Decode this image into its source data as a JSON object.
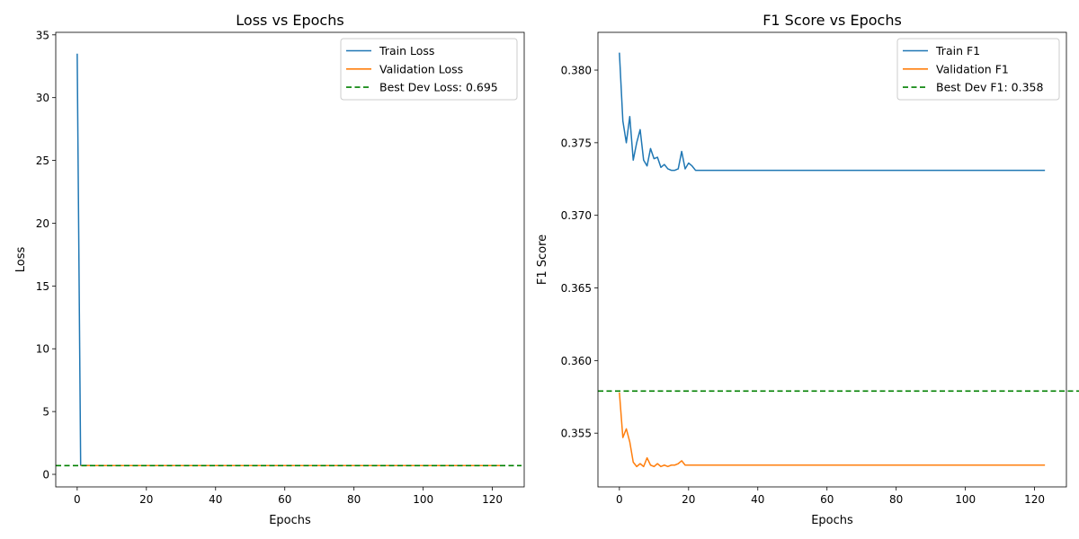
{
  "chart_data": [
    {
      "type": "line",
      "title": "Loss vs Epochs",
      "xlabel": "Epochs",
      "ylabel": "Loss",
      "xlim": [
        -6.2,
        129.2
      ],
      "ylim": [
        -1.0,
        35.2
      ],
      "xticks": [
        0,
        20,
        40,
        60,
        80,
        100,
        120
      ],
      "yticks": [
        0,
        5,
        10,
        15,
        20,
        25,
        30,
        35
      ],
      "grid": false,
      "legend_position": "top-right",
      "series": [
        {
          "name": "Train Loss",
          "color": "#1f77b4",
          "style": "solid",
          "points": [
            [
              0,
              33.5
            ],
            [
              1,
              0.72
            ],
            [
              5,
              0.7
            ],
            [
              10,
              0.7
            ],
            [
              15,
              0.7
            ],
            [
              20,
              0.7
            ],
            [
              40,
              0.7
            ],
            [
              60,
              0.7
            ],
            [
              80,
              0.7
            ],
            [
              100,
              0.7
            ],
            [
              123,
              0.7
            ]
          ]
        },
        {
          "name": "Validation Loss",
          "color": "#ff7f0e",
          "style": "solid",
          "points": [
            [
              1,
              0.7
            ],
            [
              5,
              0.7
            ],
            [
              10,
              0.695
            ],
            [
              20,
              0.695
            ],
            [
              40,
              0.695
            ],
            [
              60,
              0.695
            ],
            [
              80,
              0.695
            ],
            [
              100,
              0.695
            ],
            [
              123,
              0.695
            ]
          ]
        }
      ],
      "reference_line": {
        "name": "Best Dev Loss: 0.695",
        "value": 0.695,
        "color": "#008000",
        "style": "dashed"
      }
    },
    {
      "type": "line",
      "title": "F1 Score vs Epochs",
      "xlabel": "Epochs",
      "ylabel": "F1 Score",
      "xlim": [
        -6.2,
        129.2
      ],
      "ylim": [
        0.3513,
        0.3826
      ],
      "xticks": [
        0,
        20,
        40,
        60,
        80,
        100,
        120
      ],
      "yticks": [
        0.355,
        0.36,
        0.365,
        0.37,
        0.375,
        0.38
      ],
      "ytick_labels": [
        "0.355",
        "0.360",
        "0.365",
        "0.370",
        "0.375",
        "0.380"
      ],
      "grid": false,
      "legend_position": "top-right",
      "series": [
        {
          "name": "Train F1",
          "color": "#1f77b4",
          "style": "solid",
          "points": [
            [
              0,
              0.3812
            ],
            [
              1,
              0.3765
            ],
            [
              2,
              0.375
            ],
            [
              3,
              0.3768
            ],
            [
              4,
              0.3738
            ],
            [
              5,
              0.375
            ],
            [
              6,
              0.3759
            ],
            [
              7,
              0.3738
            ],
            [
              8,
              0.3734
            ],
            [
              9,
              0.3746
            ],
            [
              10,
              0.3739
            ],
            [
              11,
              0.374
            ],
            [
              12,
              0.3733
            ],
            [
              13,
              0.3735
            ],
            [
              14,
              0.3732
            ],
            [
              15,
              0.3731
            ],
            [
              16,
              0.3731
            ],
            [
              17,
              0.3732
            ],
            [
              18,
              0.3744
            ],
            [
              19,
              0.3732
            ],
            [
              20,
              0.3736
            ],
            [
              21,
              0.3734
            ],
            [
              22,
              0.3731
            ],
            [
              25,
              0.3731
            ],
            [
              30,
              0.3731
            ],
            [
              50,
              0.3731
            ],
            [
              75,
              0.3731
            ],
            [
              100,
              0.3731
            ],
            [
              123,
              0.3731
            ]
          ]
        },
        {
          "name": "Validation F1",
          "color": "#ff7f0e",
          "style": "solid",
          "points": [
            [
              0,
              0.3578
            ],
            [
              1,
              0.3547
            ],
            [
              2,
              0.3553
            ],
            [
              3,
              0.3544
            ],
            [
              4,
              0.353
            ],
            [
              5,
              0.3527
            ],
            [
              6,
              0.3529
            ],
            [
              7,
              0.3527
            ],
            [
              8,
              0.3533
            ],
            [
              9,
              0.3528
            ],
            [
              10,
              0.3527
            ],
            [
              11,
              0.3529
            ],
            [
              12,
              0.3527
            ],
            [
              13,
              0.3528
            ],
            [
              14,
              0.3527
            ],
            [
              15,
              0.3528
            ],
            [
              16,
              0.3528
            ],
            [
              17,
              0.3529
            ],
            [
              18,
              0.3531
            ],
            [
              19,
              0.3528
            ],
            [
              20,
              0.3528
            ],
            [
              30,
              0.3528
            ],
            [
              50,
              0.3528
            ],
            [
              75,
              0.3528
            ],
            [
              100,
              0.3528
            ],
            [
              123,
              0.3528
            ]
          ]
        }
      ],
      "reference_line": {
        "name": "Best Dev F1: 0.358",
        "value": 0.3579,
        "color": "#008000",
        "style": "dashed"
      }
    }
  ]
}
